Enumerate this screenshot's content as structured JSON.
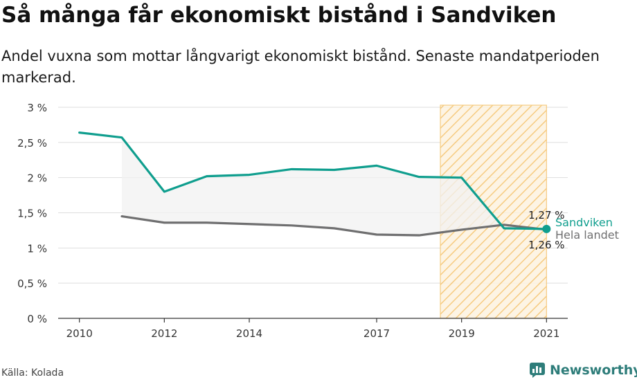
{
  "header": {
    "title": "Så många får ekonomiskt bistånd i Sandviken",
    "subtitle": "Andel vuxna som mottar långvarigt ekonomiskt bistånd. Senaste mandatperioden markerad."
  },
  "footer": {
    "source": "Källa: Kolada",
    "brand": "Newsworthy",
    "brand_icon": "newsworthy-logo-icon",
    "brand_color": "#2e7d7a"
  },
  "chart_data": {
    "type": "line",
    "x_ticks": [
      2010,
      2012,
      2014,
      2017,
      2019,
      2021
    ],
    "y_ticks": [
      0,
      0.5,
      1,
      1.5,
      2,
      2.5,
      3
    ],
    "y_tick_labels": [
      "0 %",
      "0,5 %",
      "1 %",
      "1,5 %",
      "2 %",
      "2,5 %",
      "3 %"
    ],
    "xlim": [
      2009.5,
      2021.5
    ],
    "ylim": [
      0,
      3
    ],
    "grid": true,
    "highlight_period": {
      "from": 2018.5,
      "to": 2021,
      "color": "#f5c26b",
      "pattern": "hatched"
    },
    "fill_between_series": true,
    "series": [
      {
        "name": "Sandviken",
        "color": "#0f9e8e",
        "x": [
          2010,
          2011,
          2012,
          2013,
          2014,
          2015,
          2016,
          2017,
          2018,
          2019,
          2020,
          2021
        ],
        "values": [
          2.64,
          2.57,
          1.8,
          2.02,
          2.04,
          2.12,
          2.11,
          2.17,
          2.01,
          2.0,
          1.28,
          1.27
        ],
        "end_label": "1,27 %"
      },
      {
        "name": "Hela landet",
        "color": "#6f6f70",
        "x": [
          2011,
          2012,
          2013,
          2014,
          2015,
          2016,
          2017,
          2018,
          2019,
          2020,
          2021
        ],
        "values": [
          1.45,
          1.36,
          1.36,
          1.34,
          1.32,
          1.28,
          1.19,
          1.18,
          1.26,
          1.33,
          1.26
        ],
        "end_label": "1,26 %"
      }
    ]
  }
}
